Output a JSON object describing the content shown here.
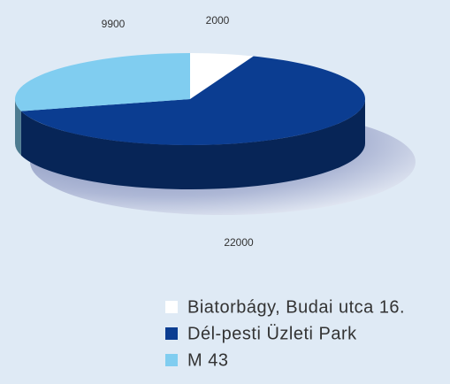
{
  "chart_data": {
    "type": "pie",
    "categories": [
      "Biatorbágy, Budai utca 16.",
      "Dél-pesti Üzleti Park",
      "M 43"
    ],
    "values": [
      2000,
      22000,
      9900
    ],
    "colors": [
      "#ffffff",
      "#0b3d91",
      "#80cdf0"
    ]
  }
}
